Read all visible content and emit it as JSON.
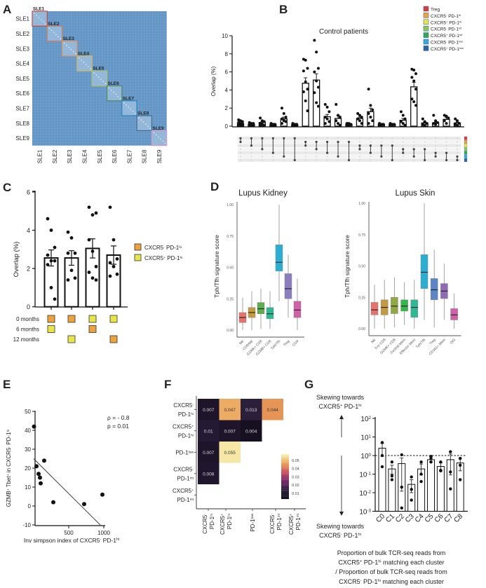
{
  "panel_letters": [
    "A",
    "B",
    "C",
    "D",
    "E",
    "F",
    "G"
  ],
  "chart_data": [
    {
      "id": "A",
      "type": "heatmap",
      "labels": [
        "SLE1",
        "SLE2",
        "SLE3",
        "SLE4",
        "SLE5",
        "SLE6",
        "SLE7",
        "SLE8",
        "SLE9"
      ],
      "block_colors": [
        "#d0453f",
        "#d07a5a",
        "#e0935a",
        "#d9b95a",
        "#a9c46a",
        "#4f8f52",
        "#2a86c0",
        "#3f6c8a",
        "#d99ac8"
      ],
      "base_color": "#6396c6",
      "block_fill": "#93b8da"
    },
    {
      "id": "B",
      "type": "bar",
      "title": "Control patients",
      "ylabel": "Overlap (%)",
      "ylim": [
        0,
        10
      ],
      "yticks": [
        "0",
        "2",
        "4",
        "6",
        "8",
        "10"
      ],
      "sets": [
        {
          "name": "Treg",
          "color": "#e03a35"
        },
        {
          "name": "CXCR5^- PD-1^hi",
          "color": "#eea23c"
        },
        {
          "name": "CXCR5^+ PD-1^hi",
          "color": "#e8e548"
        },
        {
          "name": "CXCR5^- PD-1^int",
          "color": "#8cc657"
        },
        {
          "name": "CXCR5^+ PD-1^int",
          "color": "#2fa84f"
        },
        {
          "name": "CXCR5^- PD-1^low",
          "color": "#31a9dc"
        },
        {
          "name": "CXCR5^+ PD-1^low",
          "color": "#2c63a8"
        }
      ],
      "bars": [
        {
          "sets": [
            0,
            1
          ],
          "mean": 0.3,
          "sem": 0.08,
          "points": [
            0.7,
            0.6,
            0.5,
            0.4,
            0.3,
            0.2,
            0.1,
            0.1,
            0.05
          ]
        },
        {
          "sets": [
            0,
            2
          ],
          "mean": 0.2,
          "sem": 0.05,
          "points": [
            0.4,
            0.3,
            0.3,
            0.2,
            0.1,
            0.1,
            0.05
          ]
        },
        {
          "sets": [
            0,
            3
          ],
          "mean": 0.4,
          "sem": 0.1,
          "points": [
            0.9,
            0.6,
            0.5,
            0.3,
            0.2,
            0.1,
            0.1
          ]
        },
        {
          "sets": [
            0,
            4
          ],
          "mean": 0.15,
          "sem": 0.04,
          "points": [
            0.3,
            0.2,
            0.2,
            0.1,
            0.1,
            0.05
          ]
        },
        {
          "sets": [
            0,
            5
          ],
          "mean": 0.8,
          "sem": 0.2,
          "points": [
            2.0,
            1.4,
            1.0,
            0.8,
            0.6,
            0.5,
            0.3
          ]
        },
        {
          "sets": [
            0,
            6
          ],
          "mean": 0.15,
          "sem": 0.04,
          "points": [
            0.3,
            0.2,
            0.2,
            0.1,
            0.1,
            0.05
          ]
        },
        {
          "sets": [
            1,
            2
          ],
          "mean": 4.75,
          "sem": 0.6,
          "points": [
            7.4,
            7.3,
            6.4,
            6.1,
            4.9,
            4.1,
            3.8,
            2.8,
            1.7
          ]
        },
        {
          "sets": [
            1,
            3
          ],
          "mean": 5.1,
          "sem": 0.7,
          "points": [
            9.5,
            8.2,
            6.4,
            6.0,
            5.0,
            4.3,
            3.7,
            2.6,
            2.2
          ]
        },
        {
          "sets": [
            1,
            4
          ],
          "mean": 1.05,
          "sem": 0.25,
          "points": [
            2.4,
            2.1,
            1.6,
            1.0,
            0.8,
            0.5,
            0.3
          ]
        },
        {
          "sets": [
            1,
            5
          ],
          "mean": 0.85,
          "sem": 0.3,
          "points": [
            2.4,
            1.2,
            1.0,
            0.6,
            0.3,
            0.1
          ]
        },
        {
          "sets": [
            1,
            6
          ],
          "mean": 0.2,
          "sem": 0.05,
          "points": [
            0.3,
            0.3,
            0.2,
            0.1,
            0.1
          ]
        },
        {
          "sets": [
            2,
            3
          ],
          "mean": 0.85,
          "sem": 0.15,
          "points": [
            1.4,
            1.2,
            1.0,
            0.8,
            0.6,
            0.3
          ]
        },
        {
          "sets": [
            2,
            4
          ],
          "mean": 1.6,
          "sem": 0.4,
          "points": [
            4.1,
            2.3,
            1.8,
            1.4,
            1.0,
            0.6,
            0.3
          ]
        },
        {
          "sets": [
            2,
            5
          ],
          "mean": 0.2,
          "sem": 0.05,
          "points": [
            0.3,
            0.2,
            0.2,
            0.1,
            0.1
          ]
        },
        {
          "sets": [
            2,
            6
          ],
          "mean": 0.2,
          "sem": 0.05,
          "points": [
            0.3,
            0.2,
            0.2,
            0.1,
            0.1
          ]
        },
        {
          "sets": [
            3,
            4
          ],
          "mean": 0.65,
          "sem": 0.2,
          "points": [
            1.6,
            1.2,
            0.8,
            0.5,
            0.3,
            0.1
          ]
        },
        {
          "sets": [
            3,
            5
          ],
          "mean": 4.35,
          "sem": 0.5,
          "points": [
            6.3,
            6.2,
            5.8,
            5.4,
            5.0,
            4.1,
            3.0,
            2.7,
            2.3
          ]
        },
        {
          "sets": [
            3,
            6
          ],
          "mean": 0.35,
          "sem": 0.1,
          "points": [
            0.8,
            0.5,
            0.3,
            0.2,
            0.1
          ]
        },
        {
          "sets": [
            4,
            5
          ],
          "mean": 0.35,
          "sem": 0.1,
          "points": [
            1.2,
            0.6,
            0.4,
            0.3,
            0.2
          ]
        },
        {
          "sets": [
            4,
            6
          ],
          "mean": 0.75,
          "sem": 0.2,
          "points": [
            1.2,
            1.1,
            0.9,
            0.6,
            0.3
          ]
        },
        {
          "sets": [
            5,
            6
          ],
          "mean": 0.35,
          "sem": 0.1,
          "points": [
            0.8,
            0.6,
            0.3,
            0.2,
            0.1
          ]
        }
      ]
    },
    {
      "id": "C",
      "type": "bar",
      "ylabel": "Overlap (%)",
      "ylim": [
        0,
        6
      ],
      "yticks": [
        "0",
        "2",
        "4",
        "6"
      ],
      "legend": [
        {
          "name": "CXCR5^- PD-1^hi",
          "color": "#eea23c"
        },
        {
          "name": "CXCR5^+ PD-1^hi",
          "color": "#e8e548"
        }
      ],
      "timepoints": [
        "0 months",
        "6 months",
        "12 months"
      ],
      "bars": [
        {
          "mean": 2.55,
          "sem": 0.42,
          "cells": [
            0,
            1,
            null
          ],
          "points": [
            4.6,
            4.0,
            3.1,
            2.7,
            2.4,
            2.4,
            2.2,
            1.0,
            0.4
          ]
        },
        {
          "mean": 2.55,
          "sem": 0.38,
          "cells": [
            0,
            null,
            1
          ],
          "points": [
            3.9,
            3.6,
            2.8,
            2.8,
            1.9,
            1.5,
            1.4
          ]
        },
        {
          "mean": 3.05,
          "sem": 0.5,
          "cells": [
            1,
            0,
            null
          ],
          "points": [
            5.2,
            4.8,
            4.9,
            3.5,
            2.9,
            2.1,
            1.8,
            1.5,
            1.4
          ]
        },
        {
          "mean": 2.7,
          "sem": 0.48,
          "cells": [
            1,
            null,
            0
          ],
          "points": [
            5.2,
            3.5,
            2.5,
            2.3,
            2.1,
            1.7,
            1.6
          ]
        }
      ]
    },
    {
      "id": "D1",
      "type": "box",
      "title": "Lupus Kidney",
      "ylabel": "Tph/Tfh signature score",
      "ylim": [
        0,
        1
      ],
      "yticks": [
        "0.00",
        "0.25",
        "0.50",
        "0.75",
        "1.00"
      ],
      "boxes": [
        {
          "label": "NK",
          "color": "#e8716b",
          "stats": [
            0,
            0.06,
            0.1,
            0.14,
            0.26
          ]
        },
        {
          "label": "CD8/NK",
          "color": "#c49a3c",
          "stats": [
            0,
            0.1,
            0.14,
            0.18,
            0.31
          ]
        },
        {
          "label": "GZMK+ CD8",
          "color": "#5bb04a",
          "stats": [
            0.01,
            0.13,
            0.17,
            0.22,
            0.33
          ]
        },
        {
          "label": "GZMB+ CD8",
          "color": "#2fb895",
          "stats": [
            0.01,
            0.09,
            0.13,
            0.18,
            0.31
          ]
        },
        {
          "label": "Tph/Tfh",
          "color": "#29afd1",
          "stats": [
            0.23,
            0.47,
            0.54,
            0.68,
            1.0
          ]
        },
        {
          "label": "Treg",
          "color": "#8a7ec0",
          "stats": [
            0.1,
            0.25,
            0.33,
            0.45,
            0.6
          ]
        },
        {
          "label": "CD4",
          "color": "#d25fa9",
          "stats": [
            0,
            0.1,
            0.16,
            0.23,
            0.41
          ]
        }
      ]
    },
    {
      "id": "D2",
      "type": "box",
      "title": "Lupus Skin",
      "ylabel": "Tph/Tfh signature score",
      "ylim": [
        0,
        1
      ],
      "yticks": [
        "0.00",
        "0.25",
        "0.50",
        "0.75",
        "1.00"
      ],
      "boxes": [
        {
          "label": "NK",
          "color": "#e8716b",
          "stats": [
            0,
            0.11,
            0.15,
            0.21,
            0.35
          ]
        },
        {
          "label": "Trm CD8",
          "color": "#c49a3c",
          "stats": [
            0,
            0.11,
            0.17,
            0.23,
            0.39
          ]
        },
        {
          "label": "GZMK+ CD8",
          "color": "#94a840",
          "stats": [
            0.01,
            0.12,
            0.18,
            0.25,
            0.41
          ]
        },
        {
          "label": "Central Mem",
          "color": "#35b84a",
          "stats": [
            0.03,
            0.14,
            0.18,
            0.23,
            0.37
          ]
        },
        {
          "label": "Effector Mem",
          "color": "#2fb895",
          "stats": [
            0,
            0.09,
            0.17,
            0.23,
            0.39
          ]
        },
        {
          "label": "Tph/Tfh",
          "color": "#29afd1",
          "stats": [
            0.07,
            0.32,
            0.45,
            0.59,
            1.0
          ]
        },
        {
          "label": "Treg",
          "color": "#5a85c6",
          "stats": [
            0.01,
            0.23,
            0.31,
            0.4,
            0.63
          ]
        },
        {
          "label": "CD161+ Mem",
          "color": "#8e6bb3",
          "stats": [
            0.07,
            0.24,
            0.3,
            0.36,
            0.52
          ]
        },
        {
          "label": "ISG",
          "color": "#d25fa9",
          "stats": [
            0,
            0.07,
            0.11,
            0.16,
            0.28
          ]
        }
      ]
    },
    {
      "id": "E",
      "type": "scatter",
      "ylabel": "GZMB^+ Tbet^+ in CXCR5^- PD-1^hi",
      "xlabel": "Inv simpson index of CXCR5^- PD-1^hi",
      "ylim": [
        -10,
        50
      ],
      "yticks": [
        "-10",
        "0",
        "10",
        "20",
        "30",
        "40",
        "50"
      ],
      "xticks": [
        "500",
        "1000"
      ],
      "annotation": [
        "ρ = - 0.8",
        "p = 0.01"
      ],
      "points": [
        [
          5,
          42
        ],
        [
          40,
          21
        ],
        [
          70,
          17
        ],
        [
          90,
          15
        ],
        [
          100,
          12
        ],
        [
          150,
          24
        ],
        [
          280,
          2
        ],
        [
          720,
          1
        ],
        [
          980,
          6
        ]
      ],
      "fit": [
        [
          0,
          25
        ],
        [
          950,
          -10
        ]
      ]
    },
    {
      "id": "F",
      "type": "heatmap",
      "rows": [
        [
          "CXCR5^-",
          "PD-1^hi"
        ],
        [
          "CXCR5^+",
          "PD-1^hi"
        ],
        [
          "PD-1^low"
        ],
        [
          "CXCR5^-",
          "PD-1^int"
        ],
        [
          "CXCR5^+",
          "PD-1^int"
        ]
      ],
      "cols": [
        [
          "CXCR5^-",
          "PD-1^hi"
        ],
        [
          "CXCR5^+",
          "PD-1^hi"
        ],
        [
          "PD-1^low"
        ],
        [
          "CXCR5^-",
          "PD-1^int"
        ],
        [
          "CXCR5^+",
          "PD-1^int"
        ]
      ],
      "values": [
        [
          "0.007",
          "0.047",
          "0.013",
          "0.044"
        ],
        [
          "0.01",
          "0.007",
          "0.004"
        ],
        [
          "0.007",
          "0.055"
        ],
        [
          "0.008"
        ],
        []
      ],
      "colorbar_ticks": [
        "0.05",
        "0.04",
        "0.03",
        "0.02",
        "0.01"
      ],
      "range": [
        0.003,
        0.056
      ]
    },
    {
      "id": "G",
      "type": "bar",
      "yscale": "log",
      "yticks": [
        "10^2",
        "10^1",
        "10^0",
        "10^-1",
        "10^-2",
        "10^-3"
      ],
      "categories": [
        "C0",
        "C1",
        "C2",
        "C3",
        "C4",
        "C5",
        "C6",
        "C7",
        "C8"
      ],
      "values": [
        2.5,
        0.19,
        0.37,
        0.028,
        0.19,
        0.6,
        0.26,
        0.6,
        0.4
      ],
      "sem_hi": [
        4.5,
        0.3,
        0.75,
        0.05,
        0.35,
        0.85,
        0.4,
        1.2,
        0.7
      ],
      "sem_lo": [
        0.9,
        0.1,
        0.012,
        0.01,
        0.09,
        0.45,
        0.15,
        0.09,
        0.15
      ],
      "points": [
        [
          5,
          1,
          0.25
        ],
        [
          0.45,
          0.08,
          0.05
        ],
        [
          1.1,
          0.02,
          0.0015
        ],
        [
          0.07,
          0.015,
          0.004
        ],
        [
          0.45,
          0.1,
          0.04
        ],
        [
          0.9,
          0.7,
          0.45
        ],
        [
          0.45,
          0.15,
          0.16
        ],
        [
          1.6,
          0.13,
          0.016
        ],
        [
          0.7,
          0.3,
          0.05
        ]
      ],
      "reference": 1,
      "up_label": [
        "Skewing towards",
        "CXCR5^+ PD-1^hi"
      ],
      "down_label": [
        "Skewing towards",
        "CXCR5^- PD-1^hi"
      ],
      "caption": [
        "Proportion of bulk TCR-seq reads from",
        "CXCR5^+ PD-1^hi matching each cluster",
        "/ Proportion of bulk TCR-seq reads from",
        "CXCR5^- PD-1^hi matching each cluster"
      ]
    }
  ]
}
